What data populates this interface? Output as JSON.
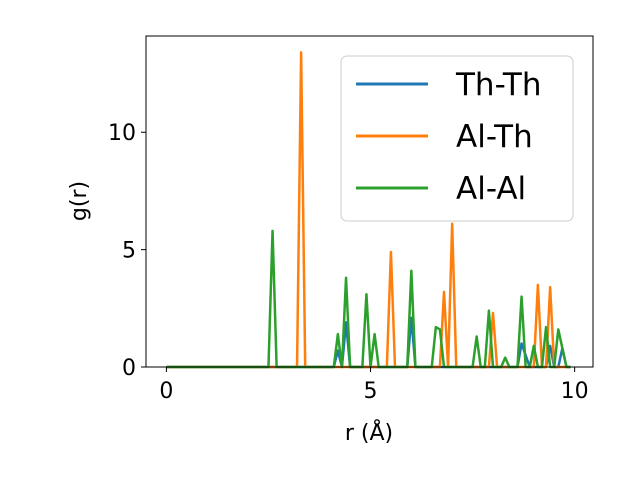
{
  "chart_data": {
    "type": "line",
    "xlabel": "r (Å)",
    "ylabel": "g(r)",
    "xlim": [
      -0.5,
      10.45
    ],
    "ylim": [
      0,
      14.1
    ],
    "xticks": [
      0,
      5,
      10
    ],
    "yticks": [
      0,
      5,
      10
    ],
    "grid": false,
    "legend_position": "top-right",
    "x": [
      0,
      0.1,
      0.2,
      0.3,
      0.4,
      0.5,
      0.6,
      0.7,
      0.8,
      0.9,
      1.0,
      1.1,
      1.2,
      1.3,
      1.4,
      1.5,
      1.6,
      1.7,
      1.8,
      1.9,
      2.0,
      2.1,
      2.2,
      2.3,
      2.4,
      2.5,
      2.6,
      2.7,
      2.8,
      2.9,
      3.0,
      3.1,
      3.2,
      3.3,
      3.4,
      3.5,
      3.6,
      3.7,
      3.8,
      3.9,
      4.0,
      4.1,
      4.2,
      4.3,
      4.4,
      4.5,
      4.6,
      4.7,
      4.8,
      4.9,
      5.0,
      5.1,
      5.2,
      5.3,
      5.4,
      5.5,
      5.6,
      5.7,
      5.8,
      5.9,
      6.0,
      6.1,
      6.2,
      6.3,
      6.4,
      6.5,
      6.6,
      6.7,
      6.8,
      6.9,
      7.0,
      7.1,
      7.2,
      7.3,
      7.4,
      7.5,
      7.6,
      7.7,
      7.8,
      7.9,
      8.0,
      8.1,
      8.2,
      8.3,
      8.4,
      8.5,
      8.6,
      8.7,
      8.8,
      8.9,
      9.0,
      9.1,
      9.2,
      9.3,
      9.4,
      9.5,
      9.6,
      9.7,
      9.8,
      9.9
    ],
    "series": [
      {
        "name": "Th-Th",
        "color": "#1f77b4",
        "values": [
          0,
          0,
          0,
          0,
          0,
          0,
          0,
          0,
          0,
          0,
          0,
          0,
          0,
          0,
          0,
          0,
          0,
          0,
          0,
          0,
          0,
          0,
          0,
          0,
          0,
          0,
          0,
          0,
          0,
          0,
          0,
          0,
          0,
          0,
          0,
          0,
          0,
          0,
          0,
          0,
          0,
          0,
          0.7,
          0,
          1.9,
          0,
          0,
          0,
          0,
          0,
          0,
          0,
          0,
          0,
          0,
          0,
          0,
          0,
          0,
          0,
          2.1,
          0,
          0,
          0,
          0,
          0,
          0,
          0,
          0,
          0,
          0,
          0,
          0,
          0,
          0,
          0,
          0,
          0,
          0,
          0,
          0,
          0,
          0,
          0,
          0,
          0,
          0,
          1.0,
          0.5,
          0,
          0,
          0,
          0,
          0,
          0.9,
          0,
          0,
          0.8,
          0,
          0
        ]
      },
      {
        "name": "Al-Th",
        "color": "#ff7f0e",
        "values": [
          0,
          0,
          0,
          0,
          0,
          0,
          0,
          0,
          0,
          0,
          0,
          0,
          0,
          0,
          0,
          0,
          0,
          0,
          0,
          0,
          0,
          0,
          0,
          0,
          0,
          0,
          0,
          0,
          0,
          0,
          0,
          0,
          0,
          13.4,
          0,
          0,
          0,
          0,
          0,
          0,
          0,
          0,
          0,
          0,
          0,
          0,
          0,
          0,
          0,
          0,
          0,
          0,
          0,
          0,
          0,
          4.9,
          0,
          0,
          0,
          0,
          0,
          0,
          0,
          0,
          0,
          0,
          0,
          0,
          3.2,
          0,
          6.1,
          0,
          0,
          0,
          0,
          0,
          0,
          0,
          0,
          0,
          2.3,
          0,
          0,
          0,
          0,
          0,
          0,
          0,
          0,
          0,
          0,
          3.5,
          0,
          0,
          3.4,
          0,
          0,
          0,
          0,
          0
        ]
      },
      {
        "name": "Al-Al",
        "color": "#2ca02c",
        "values": [
          0,
          0,
          0,
          0,
          0,
          0,
          0,
          0,
          0,
          0,
          0,
          0,
          0,
          0,
          0,
          0,
          0,
          0,
          0,
          0,
          0,
          0,
          0,
          0,
          0,
          0,
          5.8,
          0,
          0,
          0,
          0,
          0,
          0,
          0,
          0,
          0,
          0,
          0,
          0,
          0,
          0,
          0,
          1.4,
          0,
          3.8,
          0,
          0,
          0,
          0,
          3.1,
          0,
          1.4,
          0,
          0,
          0,
          0,
          0,
          0,
          0,
          0,
          4.1,
          0,
          0,
          0,
          0,
          0,
          1.7,
          1.6,
          0,
          0,
          0,
          0,
          0,
          0,
          0,
          0,
          1.3,
          0,
          0,
          2.4,
          0,
          0,
          0,
          0.4,
          0,
          0,
          0,
          3.0,
          0,
          0,
          0.9,
          0,
          0,
          1.7,
          0,
          0,
          1.6,
          0.8,
          0,
          0
        ]
      }
    ]
  }
}
